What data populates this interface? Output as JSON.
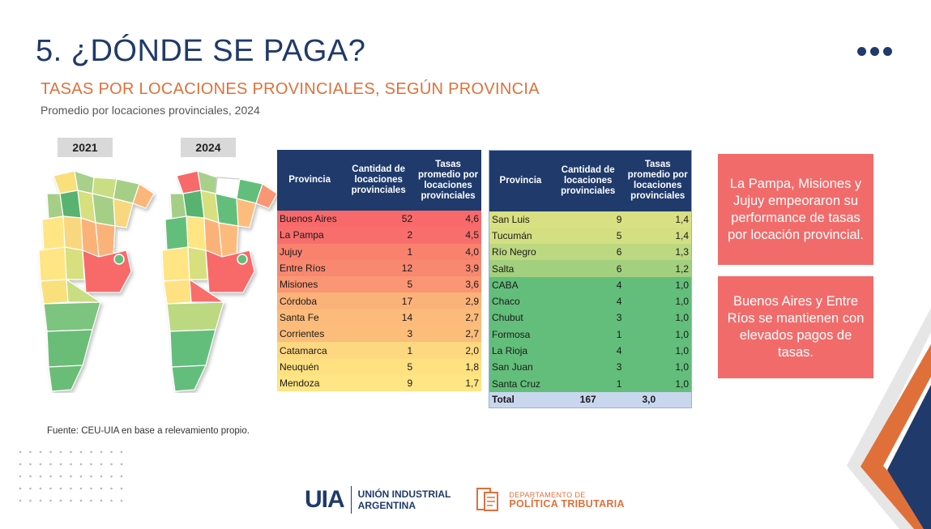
{
  "header": {
    "title": "5. ¿DÓNDE SE PAGA?",
    "subtitle": "TASAS POR LOCACIONES PROVINCIALES, SEGÚN PROVINCIA",
    "caption": "Promedio por locaciones provinciales, 2024"
  },
  "maps": {
    "year_left": "2021",
    "year_right": "2024"
  },
  "table": {
    "headers": [
      "Provincia",
      "Cantidad de locaciones provinciales",
      "Tasas promedio por locaciones provinciales"
    ],
    "left_rows": [
      {
        "provincia": "Buenos Aires",
        "cantidad": "52",
        "tasa": "4,6",
        "color": "#f8696b"
      },
      {
        "provincia": "La Pampa",
        "cantidad": "2",
        "tasa": "4,5",
        "color": "#f86e6c"
      },
      {
        "provincia": "Jujuy",
        "cantidad": "1",
        "tasa": "4,0",
        "color": "#f9826f"
      },
      {
        "provincia": "Entre Ríos",
        "cantidad": "12",
        "tasa": "3,9",
        "color": "#f98870"
      },
      {
        "provincia": "Misiones",
        "cantidad": "5",
        "tasa": "3,6",
        "color": "#fa9673"
      },
      {
        "provincia": "Córdoba",
        "cantidad": "17",
        "tasa": "2,9",
        "color": "#fbb279"
      },
      {
        "provincia": "Santa Fe",
        "cantidad": "14",
        "tasa": "2,7",
        "color": "#fcbb7b"
      },
      {
        "provincia": "Corrientes",
        "cantidad": "3",
        "tasa": "2,7",
        "color": "#fcbd7b"
      },
      {
        "provincia": "Catamarca",
        "cantidad": "1",
        "tasa": "2,0",
        "color": "#fed880"
      },
      {
        "provincia": "Neuquén",
        "cantidad": "5",
        "tasa": "1,8",
        "color": "#ffe182"
      },
      {
        "provincia": "Mendoza",
        "cantidad": "9",
        "tasa": "1,7",
        "color": "#ffe583"
      }
    ],
    "right_rows": [
      {
        "provincia": "San Luis",
        "cantidad": "9",
        "tasa": "1,4",
        "color": "#d8e082"
      },
      {
        "provincia": "Tucumán",
        "cantidad": "5",
        "tasa": "1,4",
        "color": "#d4df82"
      },
      {
        "provincia": "Río Negro",
        "cantidad": "6",
        "tasa": "1,3",
        "color": "#bcd881"
      },
      {
        "provincia": "Salta",
        "cantidad": "6",
        "tasa": "1,2",
        "color": "#a2d07f"
      },
      {
        "provincia": "CABA",
        "cantidad": "4",
        "tasa": "1,0",
        "color": "#63be7b"
      },
      {
        "provincia": "Chaco",
        "cantidad": "4",
        "tasa": "1,0",
        "color": "#63be7b"
      },
      {
        "provincia": "Chubut",
        "cantidad": "3",
        "tasa": "1,0",
        "color": "#63be7b"
      },
      {
        "provincia": "Formosa",
        "cantidad": "1",
        "tasa": "1,0",
        "color": "#63be7b"
      },
      {
        "provincia": "La Rioja",
        "cantidad": "4",
        "tasa": "1,0",
        "color": "#63be7b"
      },
      {
        "provincia": "San Juan",
        "cantidad": "3",
        "tasa": "1,0",
        "color": "#63be7b"
      },
      {
        "provincia": "Santa Cruz",
        "cantidad": "1",
        "tasa": "1,0",
        "color": "#63be7b"
      }
    ],
    "total": {
      "label": "Total",
      "cantidad": "167",
      "tasa": "3,0"
    }
  },
  "callouts": [
    "La Pampa, Misiones y Jujuy empeoraron su performance de tasas por locación provincial.",
    "Buenos Aires y Entre Ríos se mantienen con elevados pagos de tasas."
  ],
  "source": "Fuente: CEU-UIA en base a relevamiento propio.",
  "footer": {
    "uia_mark": "UIA",
    "uia_line1": "UNIÓN INDUSTRIAL",
    "uia_line2": "ARGENTINA",
    "dpt_line1": "DEPARTAMENTO DE",
    "dpt_line2": "POLÍTICA TRIBUTARIA"
  },
  "colors": {
    "navy": "#1f3a6b",
    "orange": "#e0703a",
    "callout": "#f26b6b",
    "red": "#f8696b",
    "green": "#63be7b",
    "yellow": "#ffe583"
  }
}
